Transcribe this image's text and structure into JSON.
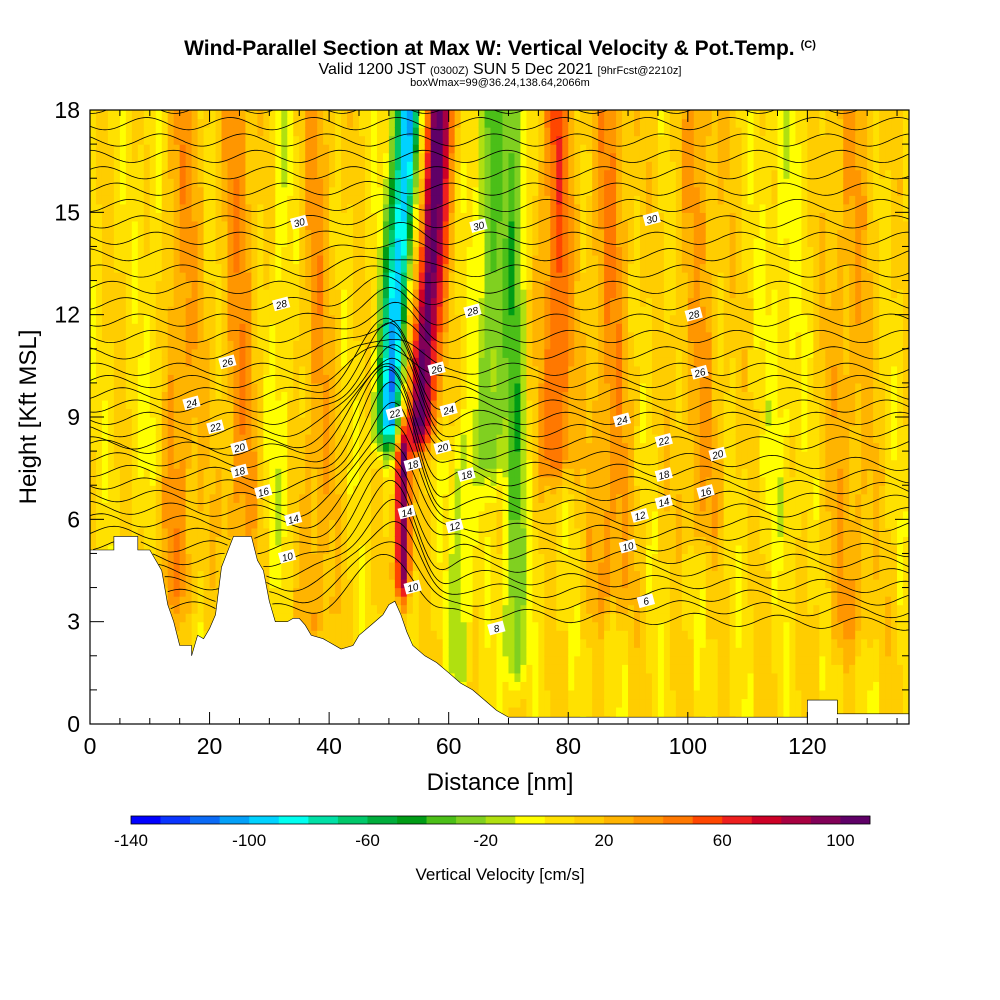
{
  "header": {
    "title": "Wind-Parallel Section at Max W: Vertical Velocity & Pot.Temp.",
    "copyright": "(C)",
    "subtitle_main": "Valid 1200 JST",
    "subtitle_zulu": "(0300Z)",
    "subtitle_date": "SUN 5 Dec 2021",
    "subtitle_fcst": "[9hrFcst@2210z]",
    "box_info": "boxWmax=99@36.24,138.64,2066m"
  },
  "chart_data": {
    "type": "heatmap",
    "xlabel": "Distance [nm]",
    "ylabel": "Height [Kft MSL]",
    "xlim": [
      0,
      137
    ],
    "ylim": [
      0,
      18
    ],
    "x_ticks": [
      "0",
      "20",
      "40",
      "60",
      "80",
      "100",
      "120"
    ],
    "x_tick_values": [
      0,
      20,
      40,
      60,
      80,
      100,
      120
    ],
    "y_ticks": [
      "0",
      "3",
      "6",
      "9",
      "12",
      "15",
      "18"
    ],
    "y_tick_values": [
      0,
      3,
      6,
      9,
      12,
      15,
      18
    ],
    "terrain": [
      [
        0,
        5.1
      ],
      [
        4,
        5.1
      ],
      [
        4,
        5.5
      ],
      [
        8,
        5.5
      ],
      [
        8,
        5.1
      ],
      [
        10,
        5.1
      ],
      [
        12,
        4.5
      ],
      [
        13,
        3.5
      ],
      [
        14,
        3.0
      ],
      [
        15,
        2.3
      ],
      [
        17,
        2.3
      ],
      [
        17,
        2.0
      ],
      [
        18,
        2.6
      ],
      [
        19,
        2.5
      ],
      [
        20,
        2.8
      ],
      [
        21,
        3.2
      ],
      [
        22,
        4.6
      ],
      [
        24,
        5.5
      ],
      [
        27,
        5.5
      ],
      [
        28,
        4.8
      ],
      [
        29,
        4.5
      ],
      [
        30,
        3.6
      ],
      [
        31,
        3.0
      ],
      [
        33,
        3.0
      ],
      [
        34,
        3.1
      ],
      [
        35,
        3.1
      ],
      [
        36,
        2.9
      ],
      [
        37,
        2.6
      ],
      [
        39,
        2.5
      ],
      [
        40,
        2.4
      ],
      [
        42,
        2.2
      ],
      [
        44,
        2.3
      ],
      [
        45,
        2.6
      ],
      [
        47,
        2.9
      ],
      [
        49,
        3.2
      ],
      [
        50,
        3.5
      ],
      [
        51,
        3.6
      ],
      [
        52,
        3.2
      ],
      [
        53,
        2.7
      ],
      [
        54,
        2.3
      ],
      [
        56,
        2.0
      ],
      [
        58,
        1.8
      ],
      [
        60,
        1.5
      ],
      [
        62,
        1.2
      ],
      [
        64,
        1.0
      ],
      [
        66,
        0.7
      ],
      [
        68,
        0.4
      ],
      [
        70,
        0.2
      ],
      [
        74,
        0.2
      ],
      [
        80,
        0.2
      ],
      [
        100,
        0.2
      ],
      [
        120,
        0.2
      ],
      [
        120,
        0.7
      ],
      [
        125,
        0.7
      ],
      [
        125,
        0.3
      ],
      [
        137,
        0.3
      ]
    ],
    "w_field": {
      "base": 8,
      "bands": [
        {
          "x": 51,
          "w": 1.5,
          "v": -110,
          "ylo": 9,
          "yhi": 18
        },
        {
          "x": 56.5,
          "w": 1.6,
          "v": 100,
          "ylo": 9,
          "yhi": 18
        },
        {
          "x": 52.3,
          "w": 0.8,
          "v": 100,
          "ylo": 4.5,
          "yhi": 7.8
        },
        {
          "x": 67,
          "w": 1.6,
          "v": -40,
          "ylo": 8,
          "yhi": 18
        },
        {
          "x": 71,
          "w": 1.3,
          "v": -40,
          "ylo": 2,
          "yhi": 18
        },
        {
          "x": 78,
          "w": 1.8,
          "v": 45,
          "ylo": 8,
          "yhi": 18
        },
        {
          "x": 87,
          "w": 2.5,
          "v": 28,
          "ylo": 4,
          "yhi": 18
        },
        {
          "x": 11,
          "w": 1.2,
          "v": -18,
          "ylo": 8,
          "yhi": 18
        },
        {
          "x": 15,
          "w": 2.5,
          "v": 25,
          "ylo": 4,
          "yhi": 18
        },
        {
          "x": 25,
          "w": 2.2,
          "v": 25,
          "ylo": 6,
          "yhi": 18
        },
        {
          "x": 32,
          "w": 1.2,
          "v": -15,
          "ylo": 6,
          "yhi": 18
        },
        {
          "x": 38,
          "w": 2.0,
          "v": 22,
          "ylo": 3,
          "yhi": 18
        },
        {
          "x": 102,
          "w": 3.0,
          "v": 20,
          "ylo": 6,
          "yhi": 18
        },
        {
          "x": 116,
          "w": 2.2,
          "v": -12,
          "ylo": 6,
          "yhi": 18
        },
        {
          "x": 127,
          "w": 3.0,
          "v": 20,
          "ylo": 3,
          "yhi": 18
        },
        {
          "x": 62,
          "w": 1.3,
          "v": -25,
          "ylo": 2,
          "yhi": 8
        }
      ]
    },
    "theta_contour_labels": [
      {
        "text": "30",
        "x": 35,
        "y": 14.7
      },
      {
        "text": "30",
        "x": 65,
        "y": 14.6
      },
      {
        "text": "30",
        "x": 94,
        "y": 14.8
      },
      {
        "text": "28",
        "x": 32,
        "y": 12.3
      },
      {
        "text": "28",
        "x": 64,
        "y": 12.1
      },
      {
        "text": "28",
        "x": 101,
        "y": 12.0
      },
      {
        "text": "26",
        "x": 23,
        "y": 10.6
      },
      {
        "text": "26",
        "x": 58,
        "y": 10.4
      },
      {
        "text": "26",
        "x": 102,
        "y": 10.3
      },
      {
        "text": "24",
        "x": 17,
        "y": 9.4
      },
      {
        "text": "24",
        "x": 60,
        "y": 9.2
      },
      {
        "text": "24",
        "x": 89,
        "y": 8.9
      },
      {
        "text": "22",
        "x": 21,
        "y": 8.7
      },
      {
        "text": "22",
        "x": 51,
        "y": 9.1
      },
      {
        "text": "22",
        "x": 96,
        "y": 8.3
      },
      {
        "text": "20",
        "x": 25,
        "y": 8.1
      },
      {
        "text": "20",
        "x": 59,
        "y": 8.1
      },
      {
        "text": "20",
        "x": 105,
        "y": 7.9
      },
      {
        "text": "18",
        "x": 25,
        "y": 7.4
      },
      {
        "text": "18",
        "x": 54,
        "y": 7.6
      },
      {
        "text": "18",
        "x": 63,
        "y": 7.3
      },
      {
        "text": "18",
        "x": 96,
        "y": 7.3
      },
      {
        "text": "16",
        "x": 29,
        "y": 6.8
      },
      {
        "text": "16",
        "x": 103,
        "y": 6.8
      },
      {
        "text": "14",
        "x": 34,
        "y": 6.0
      },
      {
        "text": "14",
        "x": 53,
        "y": 6.2
      },
      {
        "text": "14",
        "x": 96,
        "y": 6.5
      },
      {
        "text": "12",
        "x": 61,
        "y": 5.8
      },
      {
        "text": "12",
        "x": 92,
        "y": 6.1
      },
      {
        "text": "10",
        "x": 33,
        "y": 4.9
      },
      {
        "text": "10",
        "x": 54,
        "y": 4.0
      },
      {
        "text": "10",
        "x": 90,
        "y": 5.2
      },
      {
        "text": "8",
        "x": 68,
        "y": 2.8
      },
      {
        "text": "6",
        "x": 93,
        "y": 3.6
      }
    ],
    "colorbar": {
      "label": "Vertical Velocity [cm/s]",
      "tick_labels": [
        "-140",
        "-100",
        "-60",
        "-20",
        "20",
        "60",
        "100"
      ],
      "tick_values": [
        -140,
        -100,
        -60,
        -20,
        20,
        60,
        100
      ],
      "min": -140,
      "max": 110,
      "step": 10,
      "colors": [
        "#0000ff",
        "#0a34ff",
        "#0b6af6",
        "#03a0f8",
        "#00d2ff",
        "#00fff0",
        "#00e0a6",
        "#00c86a",
        "#00ad3c",
        "#009c16",
        "#4bbf18",
        "#80d020",
        "#b0e010",
        "#ffff00",
        "#ffe100",
        "#ffcd00",
        "#ffb400",
        "#ff9600",
        "#ff7800",
        "#ff4600",
        "#ee1f1e",
        "#cd0026",
        "#a80041",
        "#820058",
        "#5f0067"
      ]
    }
  }
}
